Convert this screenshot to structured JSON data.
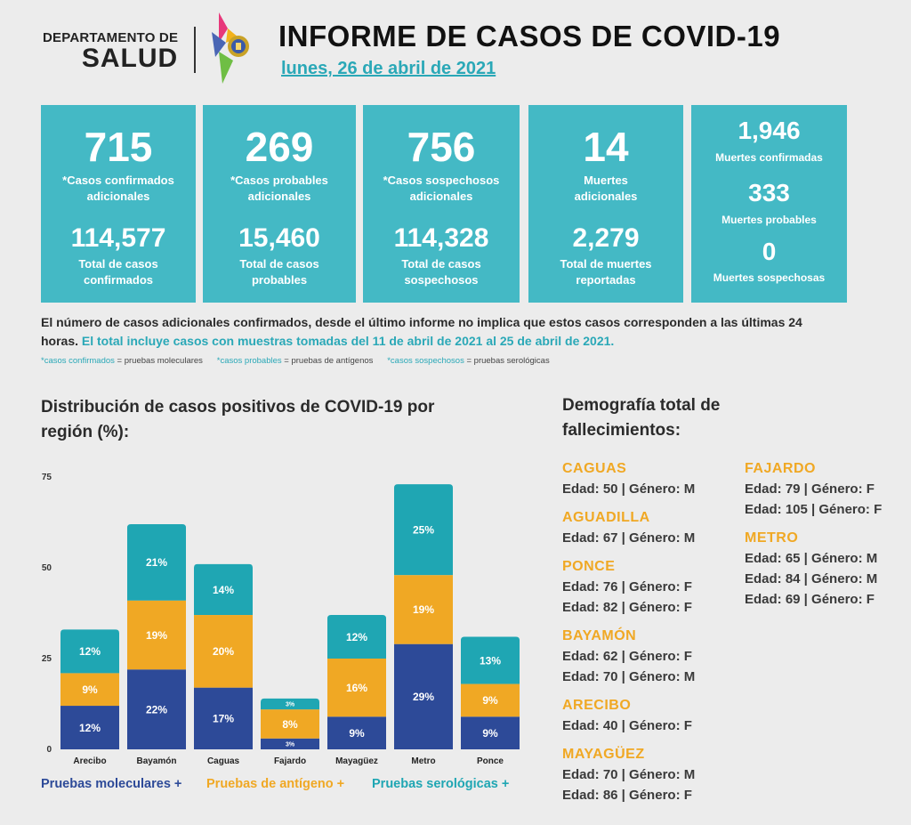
{
  "header": {
    "logo_small": "DEPARTAMENTO DE",
    "logo_big": "SALUD",
    "title": "INFORME DE CASOS DE COVID-19",
    "date": "lunes, 26 de abril de 2021"
  },
  "cards": [
    {
      "value": "715",
      "label": "*Casos confirmados adicionales",
      "total": "114,577",
      "total_label": "Total de casos confirmados"
    },
    {
      "value": "269",
      "label": "*Casos probables adicionales",
      "total": "15,460",
      "total_label": "Total de casos probables"
    },
    {
      "value": "756",
      "label": "*Casos sospechosos adicionales",
      "total": "114,328",
      "total_label": "Total de casos sospechosos"
    },
    {
      "value": "14",
      "label": "Muertes adicionales",
      "total": "2,279",
      "total_label": "Total de muertes reportadas"
    }
  ],
  "deaths_card": [
    {
      "value": "1,946",
      "label": "Muertes confirmadas"
    },
    {
      "value": "333",
      "label": "Muertes probables"
    },
    {
      "value": "0",
      "label": "Muertes sospechosas"
    }
  ],
  "notes": {
    "line1": "El número de casos adicionales confirmados, desde el último informe no implica que estos casos corresponden a las últimas 24 horas.",
    "line1_highlight": "El total incluye casos con muestras tomadas del 11 de abril de 2021 al 25 de abril de 2021.",
    "legend_confirmed_term": "*casos confirmados",
    "legend_confirmed_def": "= pruebas moleculares",
    "legend_probable_term": "*casos probables",
    "legend_probable_def": "= pruebas de antígenos",
    "legend_suspect_term": "*casos sospechosos",
    "legend_suspect_def": "= pruebas serológicas"
  },
  "chart_title": "Distribución de casos positivos de COVID-19 por región (%):",
  "chart_data": {
    "type": "bar",
    "stacked": true,
    "categories": [
      "Arecibo",
      "Bayamón",
      "Caguas",
      "Fajardo",
      "Mayagüez",
      "Metro",
      "Ponce"
    ],
    "series": [
      {
        "name": "Pruebas moleculares +",
        "color": "#2d4a98",
        "values": [
          12,
          22,
          17,
          3,
          9,
          29,
          9
        ],
        "labels": [
          "12%",
          "22%",
          "17%",
          "3%",
          "9%",
          "29%",
          "9%"
        ]
      },
      {
        "name": "Pruebas de antígeno +",
        "color": "#f0a824",
        "values": [
          9,
          19,
          20,
          8,
          16,
          19,
          9
        ],
        "labels": [
          "9%",
          "19%",
          "20%",
          "8%",
          "16%",
          "19%",
          "9%"
        ]
      },
      {
        "name": "Pruebas serológicas +",
        "color": "#1fa6b3",
        "values": [
          12,
          21,
          14,
          3,
          12,
          25,
          13
        ],
        "labels": [
          "12%",
          "21%",
          "14%",
          "3%",
          "12%",
          "25%",
          "13%"
        ]
      }
    ],
    "yticks": [
      "0",
      "25",
      "50",
      "75"
    ],
    "ylim": [
      0,
      75
    ],
    "legend_position": "bottom"
  },
  "demography": {
    "title": "Demografía total de fallecimientos:",
    "left": [
      {
        "region": "CAGUAS",
        "entries": [
          "Edad: 50 | Género: M"
        ]
      },
      {
        "region": "AGUADILLA",
        "entries": [
          "Edad: 67 | Género: M"
        ]
      },
      {
        "region": "PONCE",
        "entries": [
          "Edad: 76 | Género: F",
          "Edad: 82 | Género: F"
        ]
      },
      {
        "region": "BAYAMÓN",
        "entries": [
          "Edad: 62 | Género: F",
          "Edad: 70 | Género: M"
        ]
      },
      {
        "region": "ARECIBO",
        "entries": [
          "Edad: 40 | Género: F"
        ]
      },
      {
        "region": "MAYAGÜEZ",
        "entries": [
          "Edad: 70 | Género: M",
          "Edad: 86 | Género: F"
        ]
      }
    ],
    "right": [
      {
        "region": "FAJARDO",
        "entries": [
          "Edad: 79 | Género: F",
          "Edad: 105 | Género: F"
        ]
      },
      {
        "region": "METRO",
        "entries": [
          "Edad: 65 | Género: M",
          "Edad: 84 | Género: M",
          "Edad: 69 | Género: F"
        ]
      }
    ]
  }
}
